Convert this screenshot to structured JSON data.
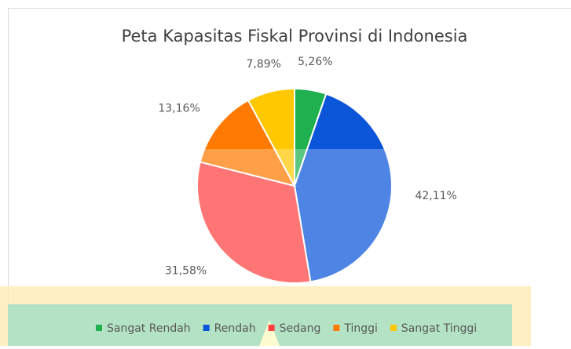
{
  "chart_data": {
    "type": "pie",
    "title": "Peta Kapasitas Fiskal Provinsi di Indonesia",
    "categories": [
      "Sangat Rendah",
      "Rendah",
      "Sedang",
      "Tinggi",
      "Sangat Tinggi"
    ],
    "values": [
      5.26,
      42.11,
      31.58,
      13.16,
      7.89
    ],
    "value_labels": [
      "5,26%",
      "42,11%",
      "31,58%",
      "13,16%",
      "7,89%"
    ],
    "colors": [
      "#1fb04f",
      "#0b55d9",
      "#ff4040",
      "#ff7a00",
      "#ffc800"
    ],
    "legend": "bottom"
  }
}
